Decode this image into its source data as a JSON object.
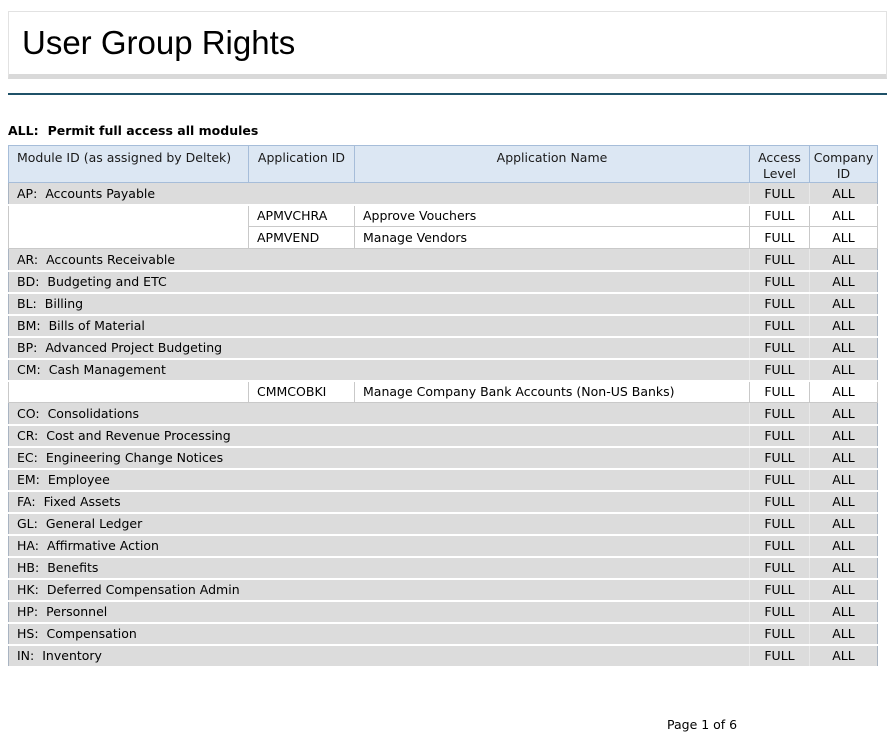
{
  "report": {
    "title": "User Group Rights",
    "group": {
      "id": "ALL:",
      "description": "Permit full access all modules"
    },
    "table": {
      "columns": [
        "Module ID (as assigned by Deltek)",
        "Application ID",
        "Application Name",
        "Access Level",
        "Company ID"
      ],
      "rows": [
        {
          "type": "module",
          "id": "AP:",
          "name": "Accounts Payable",
          "access": "FULL",
          "company": "ALL"
        },
        {
          "type": "app",
          "app_id": "APMVCHRA",
          "app_name": "Approve Vouchers",
          "access": "FULL",
          "company": "ALL"
        },
        {
          "type": "app",
          "app_id": "APMVEND",
          "app_name": "Manage Vendors",
          "access": "FULL",
          "company": "ALL"
        },
        {
          "type": "module",
          "id": "AR:",
          "name": "Accounts Receivable",
          "access": "FULL",
          "company": "ALL"
        },
        {
          "type": "module",
          "id": "BD:",
          "name": "Budgeting and ETC",
          "access": "FULL",
          "company": "ALL"
        },
        {
          "type": "module",
          "id": "BL:",
          "name": "Billing",
          "access": "FULL",
          "company": "ALL"
        },
        {
          "type": "module",
          "id": "BM:",
          "name": "Bills of Material",
          "access": "FULL",
          "company": "ALL"
        },
        {
          "type": "module",
          "id": "BP:",
          "name": "Advanced Project Budgeting",
          "access": "FULL",
          "company": "ALL"
        },
        {
          "type": "module",
          "id": "CM:",
          "name": "Cash Management",
          "access": "FULL",
          "company": "ALL"
        },
        {
          "type": "app",
          "app_id": "CMMCOBKI",
          "app_name": "Manage Company Bank Accounts (Non-US Banks)",
          "access": "FULL",
          "company": "ALL"
        },
        {
          "type": "module",
          "id": "CO:",
          "name": "Consolidations",
          "access": "FULL",
          "company": "ALL"
        },
        {
          "type": "module",
          "id": "CR:",
          "name": "Cost and Revenue Processing",
          "access": "FULL",
          "company": "ALL"
        },
        {
          "type": "module",
          "id": "EC:",
          "name": "Engineering Change Notices",
          "access": "FULL",
          "company": "ALL"
        },
        {
          "type": "module",
          "id": "EM:",
          "name": "Employee",
          "access": "FULL",
          "company": "ALL"
        },
        {
          "type": "module",
          "id": "FA:",
          "name": "Fixed Assets",
          "access": "FULL",
          "company": "ALL"
        },
        {
          "type": "module",
          "id": "GL:",
          "name": "General Ledger",
          "access": "FULL",
          "company": "ALL"
        },
        {
          "type": "module",
          "id": "HA:",
          "name": "Affirmative Action",
          "access": "FULL",
          "company": "ALL"
        },
        {
          "type": "module",
          "id": "HB:",
          "name": "Benefits",
          "access": "FULL",
          "company": "ALL"
        },
        {
          "type": "module",
          "id": "HK:",
          "name": "Deferred Compensation Admin",
          "access": "FULL",
          "company": "ALL"
        },
        {
          "type": "module",
          "id": "HP:",
          "name": "Personnel",
          "access": "FULL",
          "company": "ALL"
        },
        {
          "type": "module",
          "id": "HS:",
          "name": "Compensation",
          "access": "FULL",
          "company": "ALL"
        },
        {
          "type": "module",
          "id": "IN:",
          "name": "Inventory",
          "access": "FULL",
          "company": "ALL"
        }
      ]
    },
    "footer": {
      "page_text": "Page 1 of 6"
    },
    "colors": {
      "accent_rule": "#1f5168",
      "header_bg": "#dce7f3",
      "module_row_bg": "#dcdcdc"
    }
  }
}
